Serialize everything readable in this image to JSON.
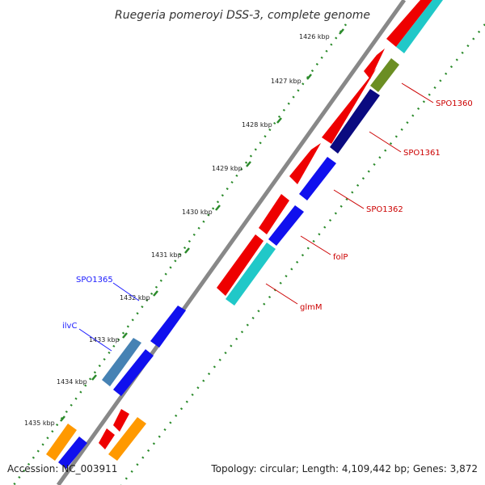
{
  "title": "Ruegeria pomeroyi DSS-3, complete genome",
  "accession": "Accession: NC_003911",
  "topology": "Topology: circular; Length: 4,109,442 bp; Genes: 3,872",
  "ticks": [
    "1426 kbp",
    "1427 kbp",
    "1428 kbp",
    "1429 kbp",
    "1430 kbp",
    "1431 kbp",
    "1432 kbp",
    "1433 kbp",
    "1434 kbp",
    "1435 kbp"
  ],
  "gene_labels": [
    {
      "text": "SPO1360",
      "color": "#cc0000"
    },
    {
      "text": "SPO1361",
      "color": "#cc0000"
    },
    {
      "text": "SPO1362",
      "color": "#cc0000"
    },
    {
      "text": "folP",
      "color": "#cc0000"
    },
    {
      "text": "glmM",
      "color": "#cc0000"
    },
    {
      "text": "SPO1365",
      "color": "#1a1aff"
    },
    {
      "text": "ilvC",
      "color": "#1a1aff"
    }
  ],
  "colors": {
    "backbone": "#888888",
    "dots": "#2a8a2a",
    "red": "#ee0000",
    "cyan": "#20c8c8",
    "olive": "#6b8e23",
    "navy": "#0a0a80",
    "blue": "#1010ee",
    "steel": "#4682b4",
    "orange": "#ff9900"
  }
}
